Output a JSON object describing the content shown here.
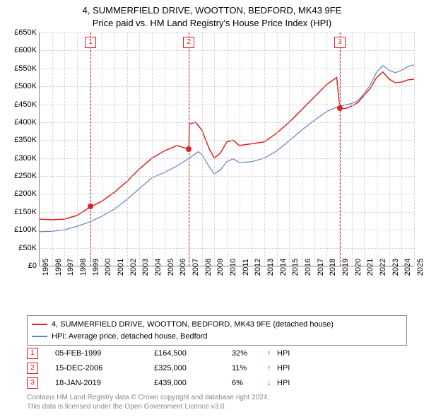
{
  "title": {
    "line1": "4, SUMMERFIELD DRIVE, WOOTTON, BEDFORD, MK43 9FE",
    "line2": "Price paid vs. HM Land Registry's House Price Index (HPI)"
  },
  "chart": {
    "type": "line",
    "background_color": "#ffffff",
    "grid_color": "#cccccc",
    "axis_color": "#888888",
    "ylim": [
      0,
      650000
    ],
    "ytick_step": 50000,
    "yticks": [
      "£0",
      "£50K",
      "£100K",
      "£150K",
      "£200K",
      "£250K",
      "£300K",
      "£350K",
      "£400K",
      "£450K",
      "£500K",
      "£550K",
      "£600K",
      "£650K"
    ],
    "xlim": [
      1995,
      2025
    ],
    "xticks": [
      "1995",
      "1996",
      "1997",
      "1998",
      "1999",
      "2000",
      "2001",
      "2002",
      "2003",
      "2004",
      "2005",
      "2006",
      "2007",
      "2008",
      "2009",
      "2010",
      "2011",
      "2012",
      "2013",
      "2014",
      "2015",
      "2016",
      "2017",
      "2018",
      "2019",
      "2020",
      "2021",
      "2022",
      "2023",
      "2024",
      "2025"
    ],
    "series": [
      {
        "name": "price_paid",
        "label": "4, SUMMERFIELD DRIVE, WOOTTON, BEDFORD, MK43 9FE (detached house)",
        "color": "#e02020",
        "line_width": 1.5,
        "data": [
          [
            1995.0,
            130000
          ],
          [
            1996.0,
            128000
          ],
          [
            1997.0,
            130000
          ],
          [
            1998.0,
            140000
          ],
          [
            1999.1,
            164500
          ],
          [
            2000.0,
            180000
          ],
          [
            2001.0,
            205000
          ],
          [
            2002.0,
            235000
          ],
          [
            2003.0,
            270000
          ],
          [
            2004.0,
            300000
          ],
          [
            2005.0,
            320000
          ],
          [
            2006.0,
            335000
          ],
          [
            2006.96,
            325000
          ],
          [
            2007.0,
            395000
          ],
          [
            2007.5,
            400000
          ],
          [
            2008.0,
            378000
          ],
          [
            2008.6,
            325000
          ],
          [
            2009.0,
            300000
          ],
          [
            2009.5,
            315000
          ],
          [
            2010.0,
            345000
          ],
          [
            2010.5,
            350000
          ],
          [
            2011.0,
            335000
          ],
          [
            2012.0,
            340000
          ],
          [
            2013.0,
            345000
          ],
          [
            2014.0,
            370000
          ],
          [
            2015.0,
            400000
          ],
          [
            2016.0,
            435000
          ],
          [
            2017.0,
            470000
          ],
          [
            2018.0,
            505000
          ],
          [
            2018.8,
            525000
          ],
          [
            2019.05,
            439000
          ],
          [
            2019.5,
            438000
          ],
          [
            2020.0,
            445000
          ],
          [
            2020.5,
            455000
          ],
          [
            2021.0,
            475000
          ],
          [
            2021.5,
            495000
          ],
          [
            2022.0,
            525000
          ],
          [
            2022.5,
            540000
          ],
          [
            2023.0,
            520000
          ],
          [
            2023.5,
            510000
          ],
          [
            2024.0,
            512000
          ],
          [
            2024.5,
            518000
          ],
          [
            2025.0,
            520000
          ]
        ]
      },
      {
        "name": "hpi",
        "label": "HPI: Average price, detached house, Bedford",
        "color": "#6080c0",
        "line_width": 1.2,
        "data": [
          [
            1995.0,
            95000
          ],
          [
            1996.0,
            96000
          ],
          [
            1997.0,
            100000
          ],
          [
            1998.0,
            110000
          ],
          [
            1999.0,
            122000
          ],
          [
            2000.0,
            138000
          ],
          [
            2001.0,
            158000
          ],
          [
            2002.0,
            185000
          ],
          [
            2003.0,
            215000
          ],
          [
            2004.0,
            245000
          ],
          [
            2005.0,
            260000
          ],
          [
            2006.0,
            278000
          ],
          [
            2007.0,
            300000
          ],
          [
            2007.7,
            318000
          ],
          [
            2008.0,
            310000
          ],
          [
            2008.6,
            275000
          ],
          [
            2009.0,
            256000
          ],
          [
            2009.5,
            268000
          ],
          [
            2010.0,
            290000
          ],
          [
            2010.5,
            298000
          ],
          [
            2011.0,
            288000
          ],
          [
            2012.0,
            290000
          ],
          [
            2013.0,
            300000
          ],
          [
            2014.0,
            320000
          ],
          [
            2015.0,
            348000
          ],
          [
            2016.0,
            378000
          ],
          [
            2017.0,
            405000
          ],
          [
            2018.0,
            430000
          ],
          [
            2019.0,
            445000
          ],
          [
            2020.0,
            452000
          ],
          [
            2020.5,
            460000
          ],
          [
            2021.0,
            480000
          ],
          [
            2021.5,
            505000
          ],
          [
            2022.0,
            540000
          ],
          [
            2022.5,
            558000
          ],
          [
            2023.0,
            545000
          ],
          [
            2023.5,
            538000
          ],
          [
            2024.0,
            545000
          ],
          [
            2024.5,
            555000
          ],
          [
            2025.0,
            560000
          ]
        ]
      }
    ],
    "markers": [
      {
        "n": "1",
        "x": 1999.1,
        "y": 164500,
        "color": "#e02020"
      },
      {
        "n": "2",
        "x": 2006.96,
        "y": 325000,
        "color": "#e02020"
      },
      {
        "n": "3",
        "x": 2019.05,
        "y": 439000,
        "color": "#e02020"
      }
    ]
  },
  "legend": {
    "items": [
      {
        "color": "#e02020",
        "label": "4, SUMMERFIELD DRIVE, WOOTTON, BEDFORD, MK43 9FE (detached house)"
      },
      {
        "color": "#6080c0",
        "label": "HPI: Average price, detached house, Bedford"
      }
    ]
  },
  "sales": [
    {
      "n": "1",
      "color": "#e02020",
      "date": "05-FEB-1999",
      "price": "£164,500",
      "pct": "32%",
      "arrow": "↑",
      "arrow_color": "#1a8f1a",
      "vs": "HPI"
    },
    {
      "n": "2",
      "color": "#e02020",
      "date": "15-DEC-2006",
      "price": "£325,000",
      "pct": "11%",
      "arrow": "↑",
      "arrow_color": "#1a8f1a",
      "vs": "HPI"
    },
    {
      "n": "3",
      "color": "#e02020",
      "date": "18-JAN-2019",
      "price": "£439,000",
      "pct": "6%",
      "arrow": "↓",
      "arrow_color": "#c02020",
      "vs": "HPI"
    }
  ],
  "footer": {
    "line1": "Contains HM Land Registry data © Crown copyright and database right 2024.",
    "line2": "This data is licensed under the Open Government Licence v3.0."
  }
}
